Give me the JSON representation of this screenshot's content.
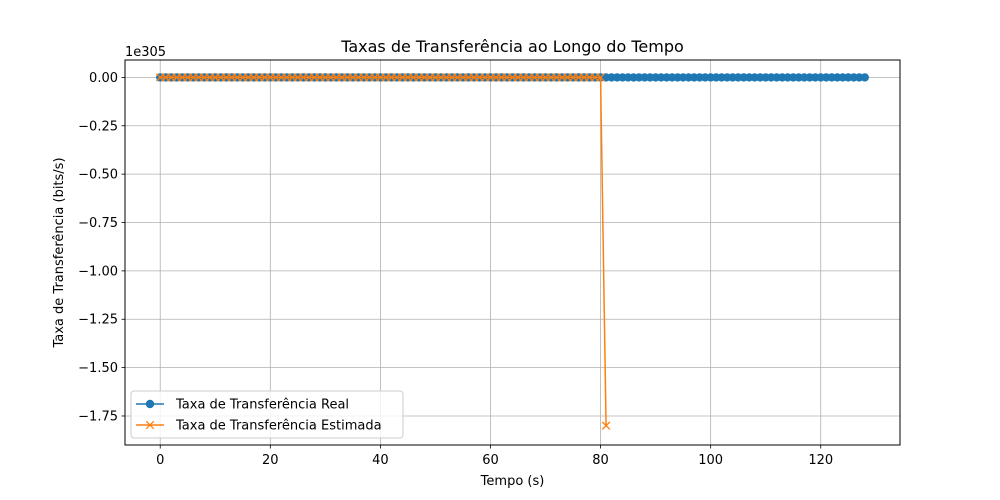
{
  "chart_data": {
    "type": "line",
    "title": "Taxas de Transferência ao Longo do Tempo",
    "xlabel": "Tempo (s)",
    "ylabel": "Taxa de Transferência (bits/s)",
    "offset_label": "1e305",
    "xlim": [
      -6.4,
      134.4
    ],
    "ylim": [
      -1.9,
      0.09
    ],
    "xticks": [
      0,
      20,
      40,
      60,
      80,
      100,
      120
    ],
    "xtick_labels": [
      "0",
      "20",
      "40",
      "60",
      "80",
      "100",
      "120"
    ],
    "yticks": [
      0.0,
      -0.25,
      -0.5,
      -0.75,
      -1.0,
      -1.25,
      -1.5,
      -1.75
    ],
    "ytick_labels": [
      "0.00",
      "−0.25",
      "−0.50",
      "−0.75",
      "−1.00",
      "−1.25",
      "−1.50",
      "−1.75"
    ],
    "grid": true,
    "legend_position": "lower-left",
    "series": [
      {
        "name": "Taxa de Transferência Real",
        "color": "#1f77b4",
        "marker": "o",
        "x_range": [
          0,
          128
        ],
        "x_step": 1,
        "value": 0
      },
      {
        "name": "Taxa de Transferência Estimada",
        "color": "#ff7f0e",
        "marker": "x",
        "x_range": [
          0,
          80
        ],
        "x_step": 1,
        "value": 0,
        "final_point": {
          "x": 81,
          "y": -1.8
        }
      }
    ]
  }
}
